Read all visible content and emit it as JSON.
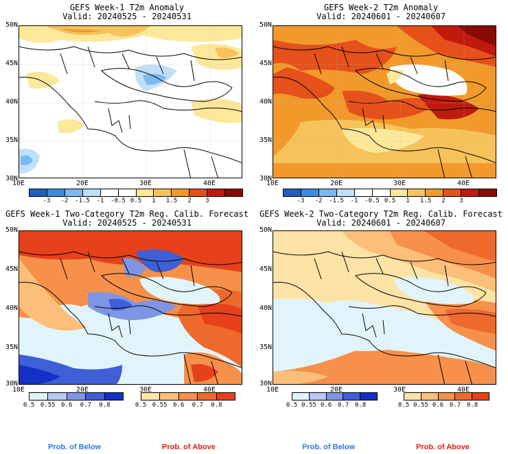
{
  "panels": [
    {
      "title": "GEFS Week-1 T2m Anomaly",
      "valid": "Valid: 20240525 - 20240531"
    },
    {
      "title": "GEFS Week-2 T2m Anomaly",
      "valid": "Valid: 20240601 - 20240607"
    },
    {
      "title": "GEFS Week-1 Two-Category T2m Reg. Calib. Forecast",
      "valid": "Valid: 20240525 - 20240531"
    },
    {
      "title": "GEFS Week-2 Two-Category T2m Reg. Calib. Forecast",
      "valid": "Valid: 20240601 - 20240607"
    }
  ],
  "axes": {
    "lat_labels": [
      "50N",
      "45N",
      "40N",
      "35N",
      "30N"
    ],
    "lon_labels": [
      "10E",
      "20E",
      "30E",
      "40E"
    ]
  },
  "anomaly_colorbar": {
    "labels": [
      "-3",
      "-2",
      "-1.5",
      "-1",
      "-0.5",
      "0.5",
      "1",
      "1.5",
      "2",
      "3"
    ],
    "colors": [
      "#1f5fc2",
      "#3d8be0",
      "#7db8f0",
      "#bfe0fa",
      "#ffffff",
      "#ffffff",
      "#fde89a",
      "#f8c25a",
      "#f19a2b",
      "#e5501b",
      "#c01a0c",
      "#8c0a05"
    ]
  },
  "prob_below": {
    "labels": [
      "0.5",
      "0.55",
      "0.6",
      "0.7",
      "0.8"
    ],
    "colors": [
      "#e2f4fb",
      "#b9c8f2",
      "#7e95e6",
      "#3f5fd6",
      "#1530c7"
    ]
  },
  "prob_above": {
    "labels": [
      "0.5",
      "0.55",
      "0.6",
      "0.7",
      "0.8"
    ],
    "colors": [
      "#fde3a6",
      "#fbbf7a",
      "#f6904a",
      "#ee6a2c",
      "#e6411a"
    ]
  },
  "legend": {
    "below_label": "Prob. of Below",
    "above_label": "Prob. of Above",
    "below_color": "#2a7ae0",
    "above_color": "#e02010"
  }
}
